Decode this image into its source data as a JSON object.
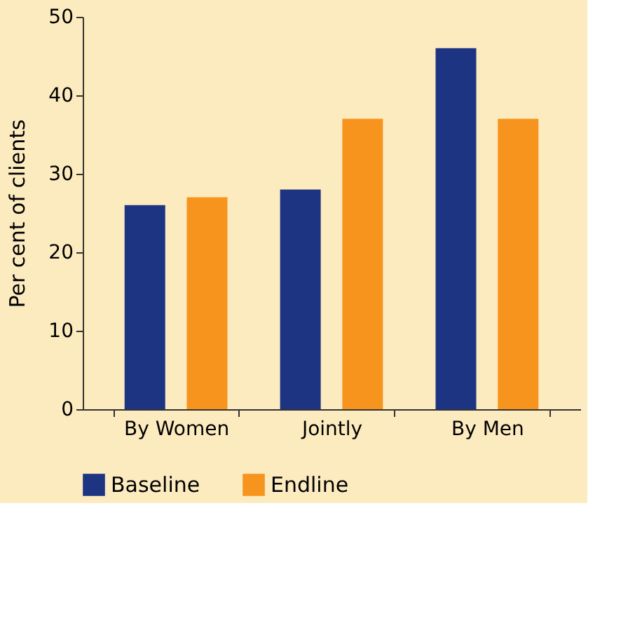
{
  "chart_data": {
    "type": "bar",
    "ylabel": "Per cent of clients",
    "categories": [
      "By Women",
      "Jointly",
      "By Men"
    ],
    "series": [
      {
        "name": "Baseline",
        "color": "#1d3483",
        "values": [
          26,
          28,
          46
        ]
      },
      {
        "name": "Endline",
        "color": "#f7941d",
        "values": [
          27,
          37,
          37
        ]
      }
    ],
    "ylim": [
      0,
      50
    ],
    "yticks": [
      0,
      10,
      20,
      30,
      40,
      50
    ],
    "grid": false,
    "legend": "bottom"
  }
}
